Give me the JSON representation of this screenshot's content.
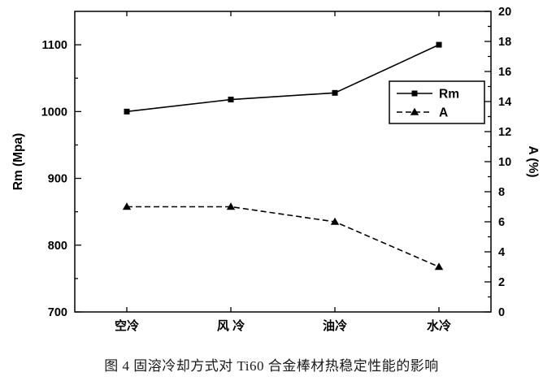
{
  "figure": {
    "caption": "图 4 固溶冷却方式对 Ti60 合金棒材热稳定性能的影响"
  },
  "chart_data": {
    "type": "line",
    "title": "",
    "categories": [
      "空冷",
      "风 冷",
      "油冷",
      "水冷"
    ],
    "series": [
      {
        "name": "Rm",
        "axis": "left",
        "values": [
          1000,
          1018,
          1028,
          1100
        ],
        "marker": "square",
        "line_style": "solid"
      },
      {
        "name": "A",
        "axis": "right",
        "values": [
          7,
          7,
          6,
          3
        ],
        "marker": "triangle",
        "line_style": "dashed"
      }
    ],
    "left_axis": {
      "label": "Rm (Mpa)",
      "min": 700,
      "max": 1150,
      "major_ticks": [
        700,
        800,
        900,
        1000,
        1100
      ],
      "minor_step": 50
    },
    "right_axis": {
      "label": "A (%)",
      "min": 0,
      "max": 20,
      "major_ticks": [
        0,
        2,
        4,
        6,
        8,
        10,
        12,
        14,
        16,
        18,
        20
      ],
      "minor_step": 1
    },
    "legend": {
      "entries": [
        "Rm",
        "A"
      ],
      "position": "right-upper"
    },
    "grid": false,
    "colors": {
      "stroke": "#000000",
      "background": "#ffffff"
    }
  }
}
